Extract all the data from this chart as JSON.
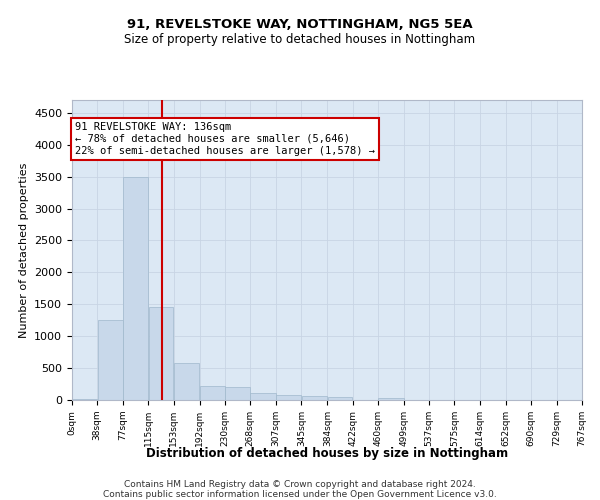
{
  "title1": "91, REVELSTOKE WAY, NOTTINGHAM, NG5 5EA",
  "title2": "Size of property relative to detached houses in Nottingham",
  "xlabel": "Distribution of detached houses by size in Nottingham",
  "ylabel": "Number of detached properties",
  "bar_color": "#c8d8ea",
  "bar_edgecolor": "#a0b8cc",
  "vline_color": "#cc0000",
  "vline_x": 136,
  "annotation_text": "91 REVELSTOKE WAY: 136sqm\n← 78% of detached houses are smaller (5,646)\n22% of semi-detached houses are larger (1,578) →",
  "annotation_box_facecolor": "#ffffff",
  "annotation_box_edgecolor": "#cc0000",
  "grid_color": "#c8d4e4",
  "background_color": "#dce8f4",
  "bin_edges": [
    0,
    38,
    77,
    115,
    153,
    192,
    230,
    268,
    307,
    345,
    384,
    422,
    460,
    499,
    537,
    575,
    614,
    652,
    690,
    729,
    767
  ],
  "bar_heights": [
    20,
    1260,
    3500,
    1450,
    580,
    220,
    200,
    110,
    75,
    55,
    40,
    0,
    30,
    0,
    0,
    0,
    0,
    0,
    0,
    0
  ],
  "ylim": [
    0,
    4700
  ],
  "yticks": [
    0,
    500,
    1000,
    1500,
    2000,
    2500,
    3000,
    3500,
    4000,
    4500
  ],
  "footer1": "Contains HM Land Registry data © Crown copyright and database right 2024.",
  "footer2": "Contains public sector information licensed under the Open Government Licence v3.0."
}
